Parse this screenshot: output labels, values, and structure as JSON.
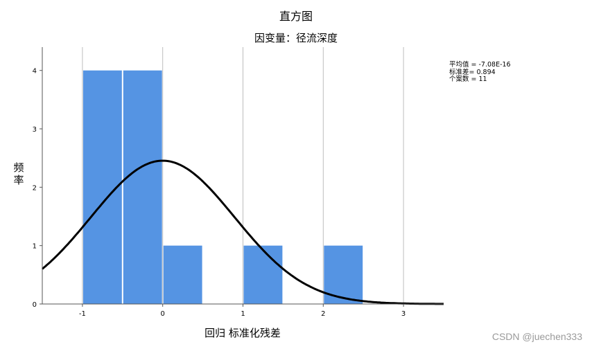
{
  "chart_data": {
    "type": "bar",
    "title": "直方图",
    "subtitle": "因变量：径流深度",
    "xlabel": "回归 标准化残差",
    "ylabel": "频率",
    "xlim": [
      -1.5,
      3.5
    ],
    "ylim": [
      0,
      4.4
    ],
    "x_ticks": [
      -1,
      0,
      1,
      2,
      3
    ],
    "y_ticks": [
      0,
      1,
      2,
      3,
      4
    ],
    "bins": [
      {
        "start": -1.0,
        "end": -0.5,
        "count": 4
      },
      {
        "start": -0.5,
        "end": 0.0,
        "count": 4
      },
      {
        "start": 0.0,
        "end": 0.5,
        "count": 1
      },
      {
        "start": 1.0,
        "end": 1.5,
        "count": 1
      },
      {
        "start": 2.0,
        "end": 2.5,
        "count": 1
      }
    ],
    "normal_curve": {
      "mean": -7.08e-16,
      "std": 0.894,
      "n": 11,
      "bin_width": 0.5
    },
    "stats_lines": [
      "平均值 = -7.08E-16",
      "标准差= 0.894",
      "个案数 = 11"
    ],
    "bar_color": "#5594e3",
    "grid": "vertical"
  },
  "watermark": "CSDN @juechen333"
}
